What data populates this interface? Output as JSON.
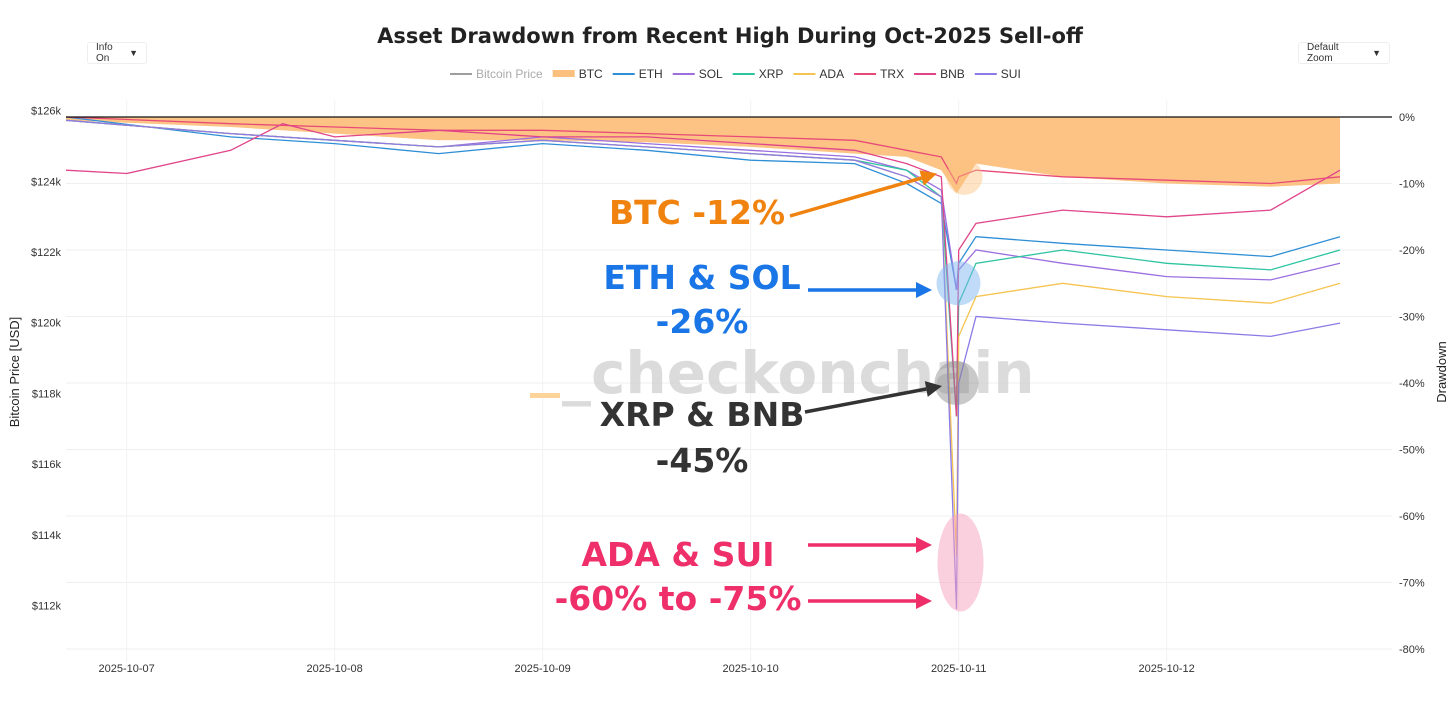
{
  "controls": {
    "info_label": "Info On",
    "zoom_label": "Default Zoom",
    "arrow_glyph": "▼"
  },
  "watermark": "_checkonchain",
  "annotations": [
    {
      "lines": [
        "BTC -12%"
      ],
      "color": "#f0820f"
    },
    {
      "lines": [
        "ETH & SOL",
        "-26%"
      ],
      "color": "#1a75e6"
    },
    {
      "lines": [
        "XRP & BNB",
        "-45%"
      ],
      "color": "#333333"
    },
    {
      "lines": [
        "ADA & SUI",
        "-60% to -75%"
      ],
      "color": "#ee2f6a"
    }
  ],
  "chart_data": {
    "type": "line",
    "title": "Asset Drawdown from Recent High During Oct-2025 Sell-off",
    "ylabel_left": "Bitcoin Price [USD]",
    "ylabel_right": "Drawdown",
    "x_ticks": [
      "2025-10-07",
      "2025-10-08",
      "2025-10-09",
      "2025-10-10",
      "2025-10-11",
      "2025-10-12"
    ],
    "y_left_ticks": [
      "$126k",
      "$124k",
      "$122k",
      "$120k",
      "$118k",
      "$116k",
      "$114k",
      "$112k"
    ],
    "y_right_ticks": [
      "0%",
      "-10%",
      "-20%",
      "-30%",
      "-40%",
      "-50%",
      "-60%",
      "-70%",
      "-80%"
    ],
    "x_range": [
      "2025-10-06T17:00",
      "2025-10-13T02:00"
    ],
    "y_left_range": [
      110400,
      126300
    ],
    "y_right_range": [
      -80,
      0
    ],
    "grid": true,
    "legend_position": "top-center",
    "series": [
      {
        "name": "Bitcoin Price",
        "color": "#9e9e9e",
        "axis": "left",
        "muted": true,
        "points": [
          [
            "2025-10-06T17:00",
            125700
          ],
          [
            "2025-10-08T12:00",
            123900
          ],
          [
            "2025-10-09T12:00",
            122600
          ],
          [
            "2025-10-10T12:00",
            121700
          ],
          [
            "2025-10-10T20:00",
            116000
          ],
          [
            "2025-10-11T00:00",
            112500
          ],
          [
            "2025-10-12T00:00",
            111500
          ],
          [
            "2025-10-12T20:00",
            114900
          ]
        ]
      },
      {
        "name": "BTC",
        "color": "#fcc07e",
        "axis": "right",
        "area": true,
        "points": [
          [
            "2025-10-06T17:00",
            -0.5
          ],
          [
            "2025-10-07T12:00",
            -1.5
          ],
          [
            "2025-10-08T00:00",
            -2.5
          ],
          [
            "2025-10-08T12:00",
            -3.5
          ],
          [
            "2025-10-09T00:00",
            -3.5
          ],
          [
            "2025-10-09T12:00",
            -3.8
          ],
          [
            "2025-10-10T00:00",
            -4.5
          ],
          [
            "2025-10-10T12:00",
            -5.5
          ],
          [
            "2025-10-10T18:00",
            -6
          ],
          [
            "2025-10-10T22:00",
            -8
          ],
          [
            "2025-10-10T23:45",
            -11.5
          ],
          [
            "2025-10-11T00:00",
            -11
          ],
          [
            "2025-10-11T02:00",
            -7
          ],
          [
            "2025-10-11T12:00",
            -9
          ],
          [
            "2025-10-12T00:00",
            -10
          ],
          [
            "2025-10-12T12:00",
            -10.5
          ],
          [
            "2025-10-12T20:00",
            -10
          ]
        ]
      },
      {
        "name": "ETH",
        "color": "#2f8fd6",
        "axis": "right",
        "points": [
          [
            "2025-10-06T17:00",
            0
          ],
          [
            "2025-10-07T12:00",
            -3
          ],
          [
            "2025-10-08T00:00",
            -4
          ],
          [
            "2025-10-08T12:00",
            -5.5
          ],
          [
            "2025-10-09T00:00",
            -4
          ],
          [
            "2025-10-09T12:00",
            -5
          ],
          [
            "2025-10-10T00:00",
            -6.5
          ],
          [
            "2025-10-10T12:00",
            -7
          ],
          [
            "2025-10-10T18:00",
            -10
          ],
          [
            "2025-10-10T22:00",
            -13
          ],
          [
            "2025-10-10T23:45",
            -26
          ],
          [
            "2025-10-11T00:00",
            -22
          ],
          [
            "2025-10-11T02:00",
            -18
          ],
          [
            "2025-10-11T12:00",
            -19
          ],
          [
            "2025-10-12T00:00",
            -20
          ],
          [
            "2025-10-12T12:00",
            -21
          ],
          [
            "2025-10-12T20:00",
            -18
          ]
        ]
      },
      {
        "name": "SOL",
        "color": "#9b6fe0",
        "axis": "right",
        "points": [
          [
            "2025-10-06T17:00",
            -0.5
          ],
          [
            "2025-10-07T12:00",
            -2.5
          ],
          [
            "2025-10-08T00:00",
            -3.5
          ],
          [
            "2025-10-08T12:00",
            -4.5
          ],
          [
            "2025-10-09T00:00",
            -3
          ],
          [
            "2025-10-09T12:00",
            -4
          ],
          [
            "2025-10-10T00:00",
            -5
          ],
          [
            "2025-10-10T12:00",
            -6
          ],
          [
            "2025-10-10T18:00",
            -8
          ],
          [
            "2025-10-10T22:00",
            -11
          ],
          [
            "2025-10-10T23:45",
            -26
          ],
          [
            "2025-10-11T00:00",
            -23
          ],
          [
            "2025-10-11T02:00",
            -20
          ],
          [
            "2025-10-11T12:00",
            -22
          ],
          [
            "2025-10-12T00:00",
            -24
          ],
          [
            "2025-10-12T12:00",
            -24.5
          ],
          [
            "2025-10-12T20:00",
            -22
          ]
        ]
      },
      {
        "name": "XRP",
        "color": "#2ec4a0",
        "axis": "right",
        "points": [
          [
            "2025-10-06T17:00",
            -0.5
          ],
          [
            "2025-10-07T12:00",
            -2.5
          ],
          [
            "2025-10-08T00:00",
            -3.5
          ],
          [
            "2025-10-08T12:00",
            -4.5
          ],
          [
            "2025-10-09T00:00",
            -3.5
          ],
          [
            "2025-10-09T12:00",
            -4.5
          ],
          [
            "2025-10-10T00:00",
            -5.5
          ],
          [
            "2025-10-10T12:00",
            -6.5
          ],
          [
            "2025-10-10T18:00",
            -8
          ],
          [
            "2025-10-10T22:00",
            -12
          ],
          [
            "2025-10-10T23:45",
            -45
          ],
          [
            "2025-10-11T00:00",
            -28
          ],
          [
            "2025-10-11T02:00",
            -22
          ],
          [
            "2025-10-11T12:00",
            -20
          ],
          [
            "2025-10-12T00:00",
            -22
          ],
          [
            "2025-10-12T12:00",
            -23
          ],
          [
            "2025-10-12T20:00",
            -20
          ]
        ]
      },
      {
        "name": "ADA",
        "color": "#f5c451",
        "axis": "right",
        "points": [
          [
            "2025-10-06T17:00",
            -0.5
          ],
          [
            "2025-10-07T12:00",
            -2.5
          ],
          [
            "2025-10-08T00:00",
            -3.5
          ],
          [
            "2025-10-08T12:00",
            -4.5
          ],
          [
            "2025-10-09T00:00",
            -3.5
          ],
          [
            "2025-10-09T12:00",
            -4.5
          ],
          [
            "2025-10-10T00:00",
            -5.5
          ],
          [
            "2025-10-10T12:00",
            -6.5
          ],
          [
            "2025-10-10T18:00",
            -9
          ],
          [
            "2025-10-10T22:00",
            -12
          ],
          [
            "2025-10-10T23:45",
            -66
          ],
          [
            "2025-10-11T00:00",
            -33
          ],
          [
            "2025-10-11T02:00",
            -27
          ],
          [
            "2025-10-11T12:00",
            -25
          ],
          [
            "2025-10-12T00:00",
            -27
          ],
          [
            "2025-10-12T12:00",
            -28
          ],
          [
            "2025-10-12T20:00",
            -25
          ]
        ]
      },
      {
        "name": "TRX",
        "color": "#e84a78",
        "axis": "right",
        "points": [
          [
            "2025-10-06T17:00",
            0
          ],
          [
            "2025-10-07T12:00",
            -1
          ],
          [
            "2025-10-08T00:00",
            -1.5
          ],
          [
            "2025-10-08T12:00",
            -2
          ],
          [
            "2025-10-09T00:00",
            -2
          ],
          [
            "2025-10-09T12:00",
            -2.5
          ],
          [
            "2025-10-10T00:00",
            -3
          ],
          [
            "2025-10-10T12:00",
            -3.5
          ],
          [
            "2025-10-10T18:00",
            -5
          ],
          [
            "2025-10-10T22:00",
            -6
          ],
          [
            "2025-10-10T23:45",
            -10
          ],
          [
            "2025-10-11T00:00",
            -9
          ],
          [
            "2025-10-11T02:00",
            -8
          ],
          [
            "2025-10-11T12:00",
            -9
          ],
          [
            "2025-10-12T00:00",
            -9.5
          ],
          [
            "2025-10-12T12:00",
            -10
          ],
          [
            "2025-10-12T20:00",
            -9
          ]
        ]
      },
      {
        "name": "BNB",
        "color": "#e0458a",
        "axis": "right",
        "points": [
          [
            "2025-10-06T17:00",
            -8
          ],
          [
            "2025-10-07T00:00",
            -8.5
          ],
          [
            "2025-10-07T12:00",
            -5
          ],
          [
            "2025-10-07T18:00",
            -1
          ],
          [
            "2025-10-08T00:00",
            -3
          ],
          [
            "2025-10-08T12:00",
            -2
          ],
          [
            "2025-10-09T00:00",
            -3
          ],
          [
            "2025-10-09T12:00",
            -3
          ],
          [
            "2025-10-10T00:00",
            -4
          ],
          [
            "2025-10-10T12:00",
            -5
          ],
          [
            "2025-10-10T18:00",
            -7
          ],
          [
            "2025-10-10T22:00",
            -9
          ],
          [
            "2025-10-10T23:45",
            -45
          ],
          [
            "2025-10-11T00:00",
            -20
          ],
          [
            "2025-10-11T02:00",
            -16
          ],
          [
            "2025-10-11T12:00",
            -14
          ],
          [
            "2025-10-12T00:00",
            -15
          ],
          [
            "2025-10-12T12:00",
            -14
          ],
          [
            "2025-10-12T20:00",
            -8
          ]
        ]
      },
      {
        "name": "SUI",
        "color": "#8c7ae6",
        "axis": "right",
        "points": [
          [
            "2025-10-06T17:00",
            -0.5
          ],
          [
            "2025-10-07T12:00",
            -2.5
          ],
          [
            "2025-10-08T00:00",
            -3.5
          ],
          [
            "2025-10-08T12:00",
            -4.5
          ],
          [
            "2025-10-09T00:00",
            -3.5
          ],
          [
            "2025-10-09T12:00",
            -4.5
          ],
          [
            "2025-10-10T00:00",
            -5.5
          ],
          [
            "2025-10-10T12:00",
            -6.5
          ],
          [
            "2025-10-10T18:00",
            -9
          ],
          [
            "2025-10-10T22:00",
            -12
          ],
          [
            "2025-10-10T23:45",
            -74
          ],
          [
            "2025-10-11T00:00",
            -40
          ],
          [
            "2025-10-11T02:00",
            -30
          ],
          [
            "2025-10-11T12:00",
            -31
          ],
          [
            "2025-10-12T00:00",
            -32
          ],
          [
            "2025-10-12T12:00",
            -33
          ],
          [
            "2025-10-12T20:00",
            -31
          ]
        ]
      }
    ]
  }
}
